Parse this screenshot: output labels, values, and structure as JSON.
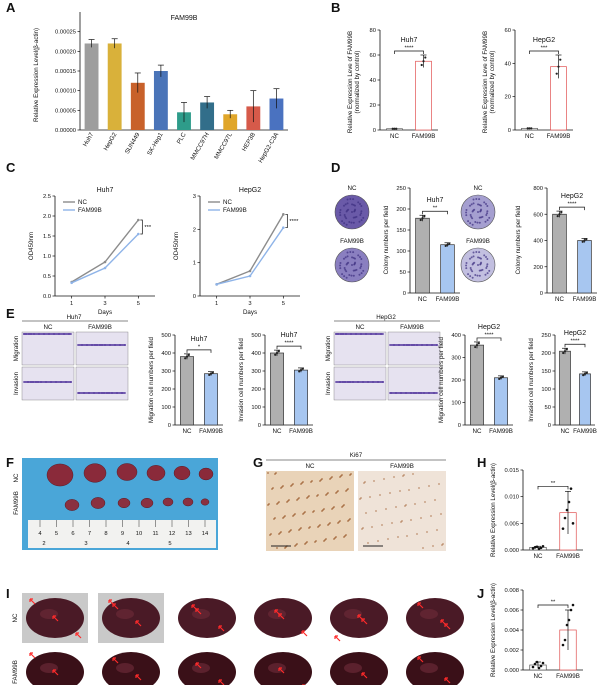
{
  "panels": {
    "A": {
      "letter": "A",
      "chart_data": {
        "type": "bar",
        "title": "FAM99B",
        "ylabel": "Relative Expression Level(β-actin)",
        "ylim": [
          0,
          0.0003
        ],
        "yticks": [
          "0.00000",
          "0.00005",
          "0.00010",
          "0.00015",
          "0.00020",
          "0.00025"
        ],
        "categories": [
          "Huh7",
          "HepG2",
          "SUN449",
          "SK-Hep1",
          "PLC",
          "MMCC97H",
          "MMCC97L",
          "HEP3B",
          "HepG2-C3A"
        ],
        "values": [
          0.00022,
          0.00022,
          0.00012,
          0.00015,
          4.5e-05,
          7e-05,
          4e-05,
          6e-05,
          8e-05
        ],
        "errors": [
          1e-05,
          1.2e-05,
          2.5e-05,
          1.5e-05,
          2.5e-05,
          1.5e-05,
          1e-05,
          4e-05,
          2.5e-05
        ],
        "colors": [
          "#9e9e9e",
          "#d9b13a",
          "#c8612a",
          "#4a74b8",
          "#2e9c8a",
          "#326e8a",
          "#e0a62a",
          "#d65a4a",
          "#4a72c0"
        ]
      }
    },
    "B": {
      "letter": "B",
      "charts": [
        {
          "type": "bar",
          "title": "Huh7",
          "ylabel": "Relative Expression Leve of FAM99B",
          "ylabel2": "(normalized by control)",
          "categories": [
            "NC",
            "FAM99B"
          ],
          "values": [
            1,
            55
          ],
          "errors": [
            0,
            5
          ],
          "ylim": [
            0,
            80
          ],
          "yticks": [
            "0",
            "20",
            "40",
            "60",
            "80"
          ],
          "sig": "****"
        },
        {
          "type": "bar",
          "title": "HepG2",
          "ylabel": "Relative Expression Leve of FAM99B",
          "ylabel2": "(normalized by control)",
          "categories": [
            "NC",
            "FAM99B"
          ],
          "values": [
            1,
            38
          ],
          "errors": [
            0,
            7
          ],
          "ylim": [
            0,
            60
          ],
          "yticks": [
            "0",
            "20",
            "40",
            "60"
          ],
          "sig": "***"
        }
      ]
    },
    "C": {
      "letter": "C",
      "charts": [
        {
          "type": "line",
          "title": "Huh7",
          "ylabel": "OD450nm",
          "xlabel": "Days",
          "x": [
            1,
            3,
            5
          ],
          "ylim": [
            0,
            2.5
          ],
          "yticks": [
            "0.0",
            "0.5",
            "1.0",
            "1.5",
            "2.0",
            "2.5"
          ],
          "series": [
            {
              "name": "NC",
              "values": [
                0.35,
                0.85,
                1.9
              ],
              "color": "#8c8c8c"
            },
            {
              "name": "FAM99B",
              "values": [
                0.33,
                0.7,
                1.55
              ],
              "color": "#8fb4e8"
            }
          ],
          "sig": "***"
        },
        {
          "type": "line",
          "title": "HepG2",
          "ylabel": "OD450nm",
          "xlabel": "Days",
          "x": [
            1,
            3,
            5
          ],
          "ylim": [
            0,
            3
          ],
          "yticks": [
            "0",
            "1",
            "2",
            "3"
          ],
          "series": [
            {
              "name": "NC",
              "values": [
                0.35,
                0.75,
                2.45
              ],
              "color": "#8c8c8c"
            },
            {
              "name": "FAM99B",
              "values": [
                0.35,
                0.6,
                2.05
              ],
              "color": "#8fb4e8"
            }
          ],
          "sig": "****"
        }
      ]
    },
    "D": {
      "letter": "D",
      "plates": [
        {
          "top": "NC",
          "bottom": "FAM99B"
        },
        {
          "top": "NC",
          "bottom": "FAM99B"
        }
      ],
      "charts": [
        {
          "type": "bar",
          "title": "Huh7",
          "ylabel": "Colony numbers per field",
          "categories": [
            "NC",
            "FAM99B"
          ],
          "values": [
            178,
            115
          ],
          "ylim": [
            0,
            250
          ],
          "yticks": [
            "0",
            "50",
            "100",
            "150",
            "200",
            "250"
          ],
          "sig": "**"
        },
        {
          "type": "bar",
          "title": "HepG2",
          "ylabel": "Colony numbers per field",
          "categories": [
            "NC",
            "FAM99B"
          ],
          "values": [
            600,
            400
          ],
          "ylim": [
            0,
            800
          ],
          "yticks": [
            "0",
            "200",
            "400",
            "600",
            "800"
          ],
          "sig": "****"
        }
      ]
    },
    "E": {
      "letter": "E",
      "grid_huh7": {
        "title": "Huh7",
        "cols": [
          "NC",
          "FAM99B"
        ],
        "rows": [
          "Migration",
          "Invasion"
        ]
      },
      "grid_hepg2": {
        "title": "HepG2",
        "cols": [
          "NC",
          "FAM99B"
        ],
        "rows": [
          "Migration",
          "Invasion"
        ]
      },
      "charts": [
        {
          "type": "bar",
          "title": "Huh7",
          "ylabel": "Migration cell numbers per field",
          "categories": [
            "NC",
            "FAM99B"
          ],
          "values": [
            380,
            285
          ],
          "ylim": [
            0,
            500
          ],
          "yticks": [
            "0",
            "100",
            "200",
            "300",
            "400",
            "500"
          ],
          "sig": "*"
        },
        {
          "type": "bar",
          "title": "Huh7",
          "ylabel": "Invasion cell numbers per field",
          "categories": [
            "NC",
            "FAM99B"
          ],
          "values": [
            400,
            305
          ],
          "ylim": [
            0,
            500
          ],
          "yticks": [
            "0",
            "100",
            "200",
            "300",
            "400",
            "500"
          ],
          "sig": "****"
        },
        {
          "type": "bar",
          "title": "HepG2",
          "ylabel": "Migration cell numbers per field",
          "categories": [
            "NC",
            "FAM99B"
          ],
          "values": [
            355,
            210
          ],
          "ylim": [
            0,
            400
          ],
          "yticks": [
            "0",
            "100",
            "200",
            "300",
            "400"
          ],
          "sig": "****"
        },
        {
          "type": "bar",
          "title": "HepG2",
          "ylabel": "Invasion cell numbers per field",
          "categories": [
            "NC",
            "FAM99B"
          ],
          "values": [
            205,
            142
          ],
          "ylim": [
            0,
            250
          ],
          "yticks": [
            "0",
            "50",
            "100",
            "150",
            "200",
            "250"
          ],
          "sig": "****"
        }
      ]
    },
    "F": {
      "letter": "F",
      "rows": [
        "NC",
        "FAM99B"
      ],
      "ruler": [
        "4",
        "5",
        "6",
        "7",
        "8",
        "9",
        "10",
        "11",
        "12",
        "13",
        "14"
      ],
      "ruler2": [
        "2",
        "3",
        "4",
        "5"
      ]
    },
    "G": {
      "letter": "G",
      "title": "Ki67",
      "cols": [
        "NC",
        "FAM99B"
      ]
    },
    "H": {
      "letter": "H",
      "chart_data": {
        "type": "scatter",
        "ylabel": "Relative Expression Level(β-actin)",
        "categories": [
          "NC",
          "FAM99B"
        ],
        "ylim": [
          0,
          0.015
        ],
        "yticks": [
          "0.000",
          "0.005",
          "0.010",
          "0.015"
        ],
        "means": [
          0.0005,
          0.007
        ],
        "errors": [
          0.0002,
          0.004
        ],
        "points": [
          [
            0.0003,
            0.0005,
            0.0006,
            0.0002,
            0.0004,
            0.0007
          ],
          [
            0.004,
            0.006,
            0.0075,
            0.009,
            0.0115,
            0.005
          ]
        ],
        "sig": "**"
      }
    },
    "I": {
      "letter": "I",
      "rows": [
        "NC",
        "FAM99B"
      ]
    },
    "J": {
      "letter": "J",
      "chart_data": {
        "type": "scatter",
        "ylabel": "Relative Expression Level(β-actin)",
        "categories": [
          "NC",
          "FAM99B"
        ],
        "ylim": [
          0,
          0.008
        ],
        "yticks": [
          "0.000",
          "0.002",
          "0.004",
          "0.006",
          "0.008"
        ],
        "means": [
          0.0005,
          0.004
        ],
        "errors": [
          0.0003,
          0.002
        ],
        "points": [
          [
            0.0003,
            0.0006,
            0.0008,
            0.0002,
            0.0004,
            0.0007
          ],
          [
            0.0025,
            0.003,
            0.0045,
            0.005,
            0.006,
            0.0065
          ]
        ],
        "sig": "**"
      }
    }
  }
}
